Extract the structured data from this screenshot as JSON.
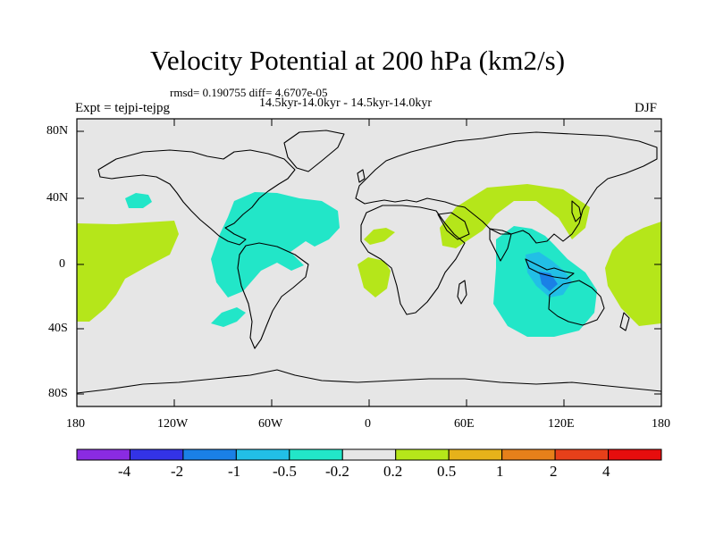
{
  "title": "Velocity Potential at 200 hPa (km2/s)",
  "stats_line": "rmsd= 0.190755 diff= 4.6707e-05",
  "period_line": "14.5kyr-14.0kyr - 14.5kyr-14.0kyr",
  "experiment_label": "Expt = tejpi-tejpg",
  "season_label": "DJF",
  "y_axis_labels": [
    "80N",
    "40N",
    "0",
    "40S",
    "80S"
  ],
  "x_axis_labels": [
    "180",
    "120W",
    "60W",
    "0",
    "60E",
    "120E",
    "180"
  ],
  "colorbar": {
    "colors": [
      "#8a2be2",
      "#3333e6",
      "#1a80e6",
      "#22bfe6",
      "#22e6c8",
      "#e6e6e6",
      "#b5e61a",
      "#e6b21a",
      "#e6801a",
      "#e6401a",
      "#e60d0d"
    ],
    "labels": [
      "-4",
      "-2",
      "-1",
      "-0.5",
      "-0.2",
      "0.2",
      "0.5",
      "1",
      "2",
      "4"
    ]
  },
  "colors": {
    "background": "#e6e6e6",
    "positive": "#b5e61a",
    "negative_light": "#22e6c8",
    "negative_mid": "#22bfe6",
    "negative_strong": "#1a80e6"
  }
}
